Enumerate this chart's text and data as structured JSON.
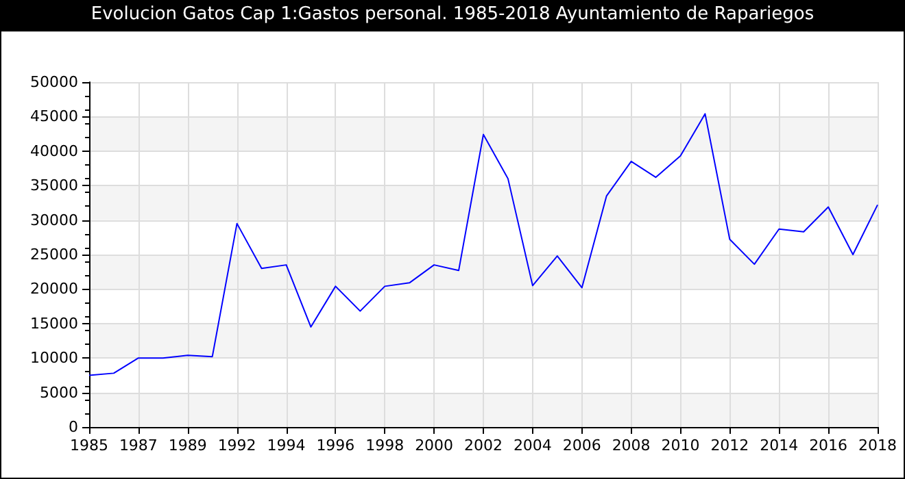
{
  "chart_data": {
    "type": "line",
    "title": "Evolucion Gatos Cap 1:Gastos personal. 1985-2018 Ayuntamiento de Rapariegos",
    "categories": [
      "1985",
      null,
      "1987",
      null,
      "1989",
      null,
      "1992",
      null,
      "1994",
      null,
      "1996",
      null,
      "1998",
      null,
      "2000",
      null,
      "2002",
      null,
      "2004",
      null,
      "2006",
      null,
      "2008",
      null,
      "2010",
      null,
      "2012",
      null,
      "2014",
      null,
      "2016",
      null,
      "2018"
    ],
    "series": [
      {
        "color": "#0000ff",
        "values": [
          7500,
          7800,
          10000,
          10000,
          10400,
          10200,
          29500,
          23000,
          23500,
          14500,
          20400,
          16800,
          20400,
          20900,
          23500,
          22700,
          42400,
          36000,
          20500,
          24800,
          20200,
          33500,
          38500,
          36200,
          39300,
          45400,
          27200,
          23600,
          28700,
          28300,
          31900,
          25000,
          32200
        ]
      }
    ],
    "ylim": [
      0,
      50000
    ],
    "yticks": [
      0,
      5000,
      10000,
      15000,
      20000,
      25000,
      30000,
      35000,
      40000,
      45000,
      50000
    ],
    "grid": true,
    "marker": "none",
    "line_style": "solid"
  }
}
